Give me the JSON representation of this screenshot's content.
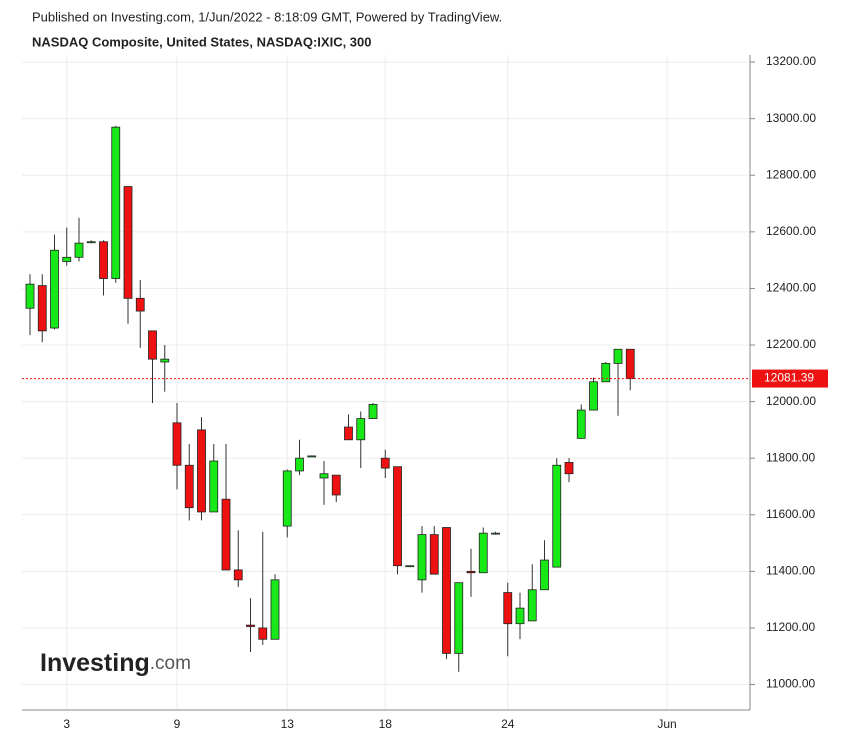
{
  "chart_data": {
    "type": "candlestick",
    "published": "Published on Investing.com, 1/Jun/2022 - 8:18:09 GMT, Powered by TradingView.",
    "title": "NASDAQ Composite, United States, NASDAQ:IXIC, 300",
    "watermark": {
      "brand": "Investing",
      "suffix": ".com"
    },
    "categories": [
      null,
      null,
      null,
      "3",
      null,
      null,
      null,
      null,
      null,
      null,
      null,
      null,
      "9",
      null,
      null,
      null,
      null,
      null,
      null,
      null,
      null,
      "13",
      null,
      null,
      null,
      null,
      null,
      null,
      null,
      "18",
      null,
      null,
      null,
      null,
      null,
      null,
      null,
      null,
      null,
      "24",
      null,
      null,
      null,
      null,
      null,
      null,
      null,
      null,
      null,
      null,
      null,
      null,
      "Jun"
    ],
    "open": [
      12330,
      12410,
      12260,
      12495,
      12510,
      12565,
      12565,
      12435,
      12760,
      12365,
      12250,
      12140,
      11925,
      11775,
      11900,
      11610,
      11655,
      11405,
      11210,
      11200,
      11160,
      11560,
      11755,
      11808,
      11730,
      11740,
      11910,
      11865,
      11940,
      11800,
      11770,
      11420,
      11370,
      11530,
      11555,
      11110,
      11400,
      11395,
      11535,
      11325,
      11215,
      11225,
      11335,
      11415,
      11785,
      11870,
      11970,
      12070,
      12135,
      12185,
      null,
      null,
      null
    ],
    "high": [
      12450,
      12450,
      12590,
      12615,
      12650,
      12570,
      12570,
      12975,
      12760,
      12430,
      12250,
      12200,
      11995,
      11850,
      11945,
      11850,
      11850,
      11545,
      11305,
      11540,
      11390,
      11760,
      11865,
      11810,
      11790,
      11740,
      11955,
      11965,
      11995,
      11830,
      11770,
      11420,
      11560,
      11560,
      11555,
      11360,
      11480,
      11555,
      11540,
      11360,
      11325,
      11425,
      11510,
      11800,
      11800,
      11990,
      12085,
      12140,
      12185,
      12185,
      null,
      null,
      null
    ],
    "low": [
      12235,
      12210,
      12255,
      12480,
      12495,
      12560,
      12375,
      12420,
      12275,
      12190,
      11995,
      12035,
      11690,
      11580,
      11580,
      11610,
      11405,
      11345,
      11115,
      11140,
      11160,
      11520,
      11740,
      11805,
      11635,
      11645,
      11865,
      11765,
      11940,
      11730,
      11390,
      11415,
      11325,
      11390,
      11090,
      11045,
      11310,
      11395,
      11530,
      11100,
      11160,
      11225,
      11335,
      11415,
      11715,
      11870,
      11970,
      12070,
      11950,
      12040,
      null,
      null,
      null
    ],
    "close": [
      12415,
      12250,
      12535,
      12510,
      12560,
      12565,
      12435,
      12970,
      12365,
      12320,
      12150,
      12150,
      11775,
      11625,
      11610,
      11790,
      11405,
      11370,
      11205,
      11160,
      11370,
      11755,
      11800,
      11808,
      11745,
      11670,
      11865,
      11940,
      11990,
      11765,
      11420,
      11420,
      11530,
      11390,
      11110,
      11360,
      11395,
      11535,
      11535,
      11215,
      11270,
      11335,
      11440,
      11775,
      11745,
      11970,
      12070,
      12135,
      12185,
      12081.39,
      null,
      null,
      null
    ],
    "up_color": "#18e818",
    "down_color": "#ee1111",
    "last_price": 12081.39,
    "last_price_color": "#ee1111",
    "ylim": [
      10910,
      13225
    ],
    "yticks": [
      {
        "value": 11000,
        "label": "11000.00"
      },
      {
        "value": 11200,
        "label": "11200.00"
      },
      {
        "value": 11400,
        "label": "11400.00"
      },
      {
        "value": 11600,
        "label": "11600.00"
      },
      {
        "value": 11800,
        "label": "11800.00"
      },
      {
        "value": 12000,
        "label": "12000.00"
      },
      {
        "value": 12200,
        "label": "12200.00"
      },
      {
        "value": 12400,
        "label": "12400.00"
      },
      {
        "value": 12600,
        "label": "12600.00"
      },
      {
        "value": 12800,
        "label": "12800.00"
      },
      {
        "value": 13000,
        "label": "13000.00"
      },
      {
        "value": 13200,
        "label": "13200.00"
      }
    ],
    "grid": true
  }
}
